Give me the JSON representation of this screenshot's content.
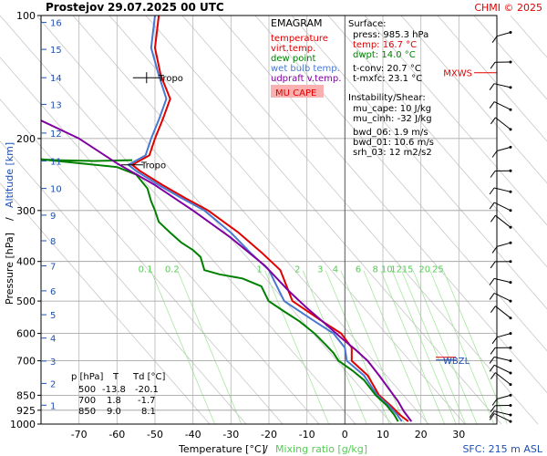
{
  "chart_data": {
    "type": "line",
    "title_station": "Prostejov",
    "title_datetime": "29.07.2025 00 UTC",
    "credit": "CHMI © 2025",
    "xlabel_temp": "Temperature [°C]",
    "xlabel_sep": "/",
    "xlabel_mix": "Mixing ratio [g/kg]",
    "ylabel_pressure": "Pressure [hPa]",
    "ylabel_sep": "/",
    "ylabel_altitude": "Altitude [km]",
    "sfc_label": "SFC: 215 m ASL",
    "xlim": [
      -80,
      40
    ],
    "x_ticks": [
      -70,
      -60,
      -50,
      -40,
      -30,
      -20,
      -10,
      0,
      10,
      20,
      30
    ],
    "p_ticks": [
      100,
      200,
      300,
      400,
      500,
      600,
      700,
      850,
      925,
      1000
    ],
    "km_ticks": [
      {
        "km": "16",
        "p": 104
      },
      {
        "km": "15",
        "p": 121
      },
      {
        "km": "14",
        "p": 142
      },
      {
        "km": "13",
        "p": 165
      },
      {
        "km": "12",
        "p": 194
      },
      {
        "km": "11",
        "p": 227
      },
      {
        "km": "10",
        "p": 265
      },
      {
        "km": "9",
        "p": 308
      },
      {
        "km": "8",
        "p": 356
      },
      {
        "km": "7",
        "p": 410
      },
      {
        "km": "6",
        "p": 472
      },
      {
        "km": "5",
        "p": 540
      },
      {
        "km": "4",
        "p": 616
      },
      {
        "km": "3",
        "p": 701
      },
      {
        "km": "2",
        "p": 795
      },
      {
        "km": "1",
        "p": 899
      }
    ],
    "mix_labels": [
      {
        "w": "0.1",
        "t": -52.5
      },
      {
        "w": "0.2",
        "t": -45.5
      },
      {
        "w": "1",
        "t": -22.5
      },
      {
        "w": "2",
        "t": -12.5
      },
      {
        "w": "3",
        "t": -6.5
      },
      {
        "w": "4",
        "t": -2.5
      },
      {
        "w": "6",
        "t": 3.5
      },
      {
        "w": "8",
        "t": 8
      },
      {
        "w": "10",
        "t": 11
      },
      {
        "w": "12",
        "t": 13.5
      },
      {
        "w": "15",
        "t": 16.5
      },
      {
        "w": "20",
        "t": 21
      },
      {
        "w": "25",
        "t": 24.5
      }
    ],
    "mix_label_p": 400,
    "legend": {
      "title": "EMAGRAM",
      "items": [
        {
          "name": "temperature",
          "color": "#e00000"
        },
        {
          "name": "virt.temp.",
          "color": "#e00000"
        },
        {
          "name": "dew point",
          "color": "#008000"
        },
        {
          "name": "wet bulb temp.",
          "color": "#4a78d0"
        },
        {
          "name": "udpraft v.temp.",
          "color": "#8000a0"
        }
      ],
      "badge": "MU CAPE"
    },
    "info": {
      "surface_title": "Surface:",
      "press": "press: 985.3 hPa",
      "temp": "temp: 16.7 °C",
      "dwpt": "dwpt: 14.0 °C",
      "tconv": "t-conv: 20.7 °C",
      "tmxfc": "t-mxfc: 23.1 °C",
      "instab_title": "Instability/Shear:",
      "mu_cape": "mu_cape: 10 J/kg",
      "mu_cinh": "mu_cinh: -32 J/kg",
      "bwd_06": "bwd_06: 1.9 m/s",
      "bwd_01": "bwd_01: 10.6 m/s",
      "srh_03": "srh_03: 12 m2/s2"
    },
    "table": {
      "headers": [
        "p [hPa]",
        "T",
        "Td [°C]"
      ],
      "rows": [
        [
          "500",
          "-13.8",
          "-20.1"
        ],
        [
          "700",
          "1.8",
          "-1.7"
        ],
        [
          "850",
          "9.0",
          "8.1"
        ]
      ]
    },
    "annotations": {
      "tropo_upper": {
        "text": "Tropo",
        "p": 142,
        "t": -51
      },
      "tropo_lower": {
        "text": "Tropo",
        "p": 232,
        "t": -56
      },
      "mxws": {
        "text": "MXWS",
        "p": 138
      },
      "wbzl": {
        "text": "WBZL",
        "p": 697
      }
    },
    "series": [
      {
        "name": "temperature",
        "color": "#e00000",
        "points": [
          [
            -49,
            100
          ],
          [
            -50,
            120
          ],
          [
            -48.5,
            140
          ],
          [
            -46,
            160
          ],
          [
            -48,
            180
          ],
          [
            -50,
            200
          ],
          [
            -51.5,
            220
          ],
          [
            -56,
            232
          ],
          [
            -54,
            240
          ],
          [
            -48,
            260
          ],
          [
            -42,
            280
          ],
          [
            -36,
            300
          ],
          [
            -28,
            340
          ],
          [
            -22,
            380
          ],
          [
            -17,
            420
          ],
          [
            -13.8,
            500
          ],
          [
            -6,
            560
          ],
          [
            -1,
            600
          ],
          [
            1.8,
            650
          ],
          [
            1.8,
            700
          ],
          [
            6,
            760
          ],
          [
            9,
            850
          ],
          [
            12,
            900
          ],
          [
            14.5,
            950
          ],
          [
            16.7,
            985
          ]
        ]
      },
      {
        "name": "wet bulb temp.",
        "color": "#4a78d0",
        "points": [
          [
            -50,
            100
          ],
          [
            -51,
            120
          ],
          [
            -49,
            140
          ],
          [
            -47,
            160
          ],
          [
            -49,
            180
          ],
          [
            -51,
            200
          ],
          [
            -52.5,
            220
          ],
          [
            -57,
            232
          ],
          [
            -55,
            240
          ],
          [
            -49,
            260
          ],
          [
            -43,
            280
          ],
          [
            -37,
            300
          ],
          [
            -30,
            340
          ],
          [
            -25,
            380
          ],
          [
            -20,
            420
          ],
          [
            -16,
            500
          ],
          [
            -8,
            560
          ],
          [
            -3,
            600
          ],
          [
            0,
            650
          ],
          [
            0.5,
            700
          ],
          [
            5,
            760
          ],
          [
            8.5,
            850
          ],
          [
            11.5,
            900
          ],
          [
            13.8,
            950
          ],
          [
            15,
            985
          ]
        ]
      },
      {
        "name": "dew point",
        "color": "#008000",
        "points": [
          [
            -56,
            226
          ],
          [
            -66,
            227
          ],
          [
            -76,
            226
          ],
          [
            -80,
            225
          ],
          [
            -60,
            235
          ],
          [
            -55,
            245
          ],
          [
            -52,
            265
          ],
          [
            -51,
            285
          ],
          [
            -50,
            300
          ],
          [
            -49,
            320
          ],
          [
            -46,
            340
          ],
          [
            -43,
            360
          ],
          [
            -40,
            375
          ],
          [
            -38,
            390
          ],
          [
            -37,
            420
          ],
          [
            -33,
            430
          ],
          [
            -27,
            440
          ],
          [
            -22,
            460
          ],
          [
            -20.1,
            500
          ],
          [
            -16,
            530
          ],
          [
            -12,
            560
          ],
          [
            -8,
            600
          ],
          [
            -5,
            640
          ],
          [
            -3,
            670
          ],
          [
            -1.7,
            700
          ],
          [
            2,
            740
          ],
          [
            5,
            780
          ],
          [
            8.1,
            850
          ],
          [
            11,
            900
          ],
          [
            13,
            950
          ],
          [
            14,
            985
          ]
        ]
      },
      {
        "name": "udpraft v.temp.",
        "color": "#8000a0",
        "points": [
          [
            -86,
            170
          ],
          [
            -70,
            200
          ],
          [
            -60,
            230
          ],
          [
            -50,
            260
          ],
          [
            -40,
            300
          ],
          [
            -30,
            350
          ],
          [
            -21,
            410
          ],
          [
            -15,
            470
          ],
          [
            -10,
            520
          ],
          [
            -5,
            570
          ],
          [
            -1,
            615
          ],
          [
            3,
            660
          ],
          [
            6,
            700
          ],
          [
            9,
            760
          ],
          [
            12,
            830
          ],
          [
            14,
            880
          ],
          [
            15.5,
            930
          ],
          [
            17.5,
            985
          ]
        ]
      }
    ],
    "wind_barbs": [
      {
        "p": 110
      },
      {
        "p": 130
      },
      {
        "p": 150
      },
      {
        "p": 170
      },
      {
        "p": 190
      },
      {
        "p": 210
      },
      {
        "p": 240
      },
      {
        "p": 270
      },
      {
        "p": 300
      },
      {
        "p": 330
      },
      {
        "p": 360
      },
      {
        "p": 400
      },
      {
        "p": 450
      },
      {
        "p": 500
      },
      {
        "p": 550
      },
      {
        "p": 600
      },
      {
        "p": 650
      },
      {
        "p": 700
      },
      {
        "p": 750
      },
      {
        "p": 800
      },
      {
        "p": 850
      },
      {
        "p": 900
      },
      {
        "p": 950
      },
      {
        "p": 985
      }
    ]
  }
}
